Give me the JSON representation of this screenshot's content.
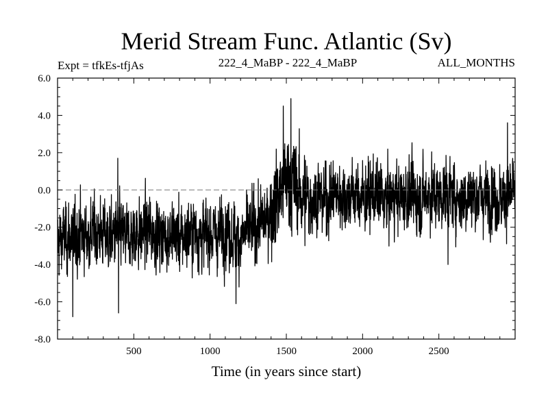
{
  "chart_data": {
    "type": "line",
    "title": "Merid Stream Func. Atlantic (Sv)",
    "subtitle_left": "Expt = tfkEs-tfjAs",
    "subtitle_center": "222_4_MaBP - 222_4_MaBP",
    "subtitle_right": "ALL_MONTHS",
    "xlabel": "Time (in years since start)",
    "ylabel": "",
    "xlim": [
      0,
      3000
    ],
    "ylim": [
      -8.0,
      6.0
    ],
    "x_ticks": [
      500,
      1000,
      1500,
      2000,
      2500
    ],
    "x_tick_labels": [
      "500",
      "1000",
      "1500",
      "2000",
      "2500"
    ],
    "y_ticks": [
      -8.0,
      -6.0,
      -4.0,
      -2.0,
      0.0,
      2.0,
      4.0,
      6.0
    ],
    "y_tick_labels": [
      "-8.0",
      "-6.0",
      "-4.0",
      "-2.0",
      "0.0",
      "2.0",
      "4.0",
      "6.0"
    ],
    "zero_line": {
      "y": 0.0,
      "style": "dashed"
    },
    "grid": false,
    "series": [
      {
        "x": [
          0,
          50,
          100,
          150,
          200,
          250,
          300,
          350,
          400,
          450,
          500,
          550,
          600,
          650,
          700,
          750,
          800,
          850,
          900,
          950,
          1000,
          1050,
          1100,
          1150,
          1200,
          1250,
          1300,
          1350,
          1400,
          1450,
          1500,
          1550,
          1600,
          1650,
          1700,
          1750,
          1800,
          1850,
          1900,
          1950,
          2000,
          2050,
          2100,
          2150,
          2200,
          2250,
          2300,
          2350,
          2400,
          2450,
          2500,
          2550,
          2600,
          2650,
          2700,
          2750,
          2800,
          2850,
          2900,
          2950,
          3000
        ],
        "values": [
          -2.8,
          -2.5,
          -2.6,
          -2.3,
          -2.5,
          -2.2,
          -2.4,
          -2.6,
          -2.2,
          -2.6,
          -2.4,
          -2.3,
          -2.1,
          -2.4,
          -2.5,
          -2.3,
          -2.6,
          -2.4,
          -2.2,
          -2.5,
          -2.3,
          -2.4,
          -2.1,
          -2.5,
          -2.7,
          -2.2,
          -1.9,
          -1.7,
          -1.2,
          -0.2,
          0.5,
          0.3,
          -0.3,
          -0.6,
          -0.4,
          -0.5,
          -0.3,
          -0.2,
          -0.4,
          -0.2,
          -0.5,
          -0.3,
          -0.2,
          -0.6,
          -0.3,
          -0.4,
          -0.2,
          -0.5,
          -0.3,
          -0.1,
          -0.4,
          -0.2,
          -0.3,
          -0.5,
          -0.2,
          -0.4,
          -0.3,
          -0.2,
          -0.5,
          -0.3,
          -0.2
        ],
        "noise_amplitude": 1.2,
        "extremes": [
          {
            "x": 100,
            "y": -6.8
          },
          {
            "x": 400,
            "y": -6.6
          },
          {
            "x": 395,
            "y": 1.7
          },
          {
            "x": 1170,
            "y": -6.1
          },
          {
            "x": 1530,
            "y": 4.9
          },
          {
            "x": 1480,
            "y": 4.5
          },
          {
            "x": 2560,
            "y": -4.0
          },
          {
            "x": 2950,
            "y": 3.6
          }
        ]
      }
    ]
  }
}
